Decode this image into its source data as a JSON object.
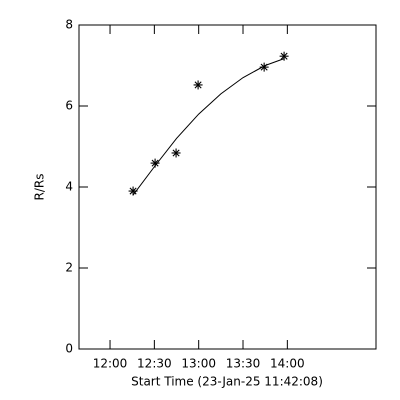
{
  "chart_data": {
    "type": "scatter",
    "xlabel": "Start Time (23-Jan-25 11:42:08)",
    "ylabel": "R/Rs",
    "xlim": [
      699,
      900
    ],
    "xticks": [
      {
        "value": 720,
        "label": "12:00"
      },
      {
        "value": 750,
        "label": "12:30"
      },
      {
        "value": 780,
        "label": "13:00"
      },
      {
        "value": 810,
        "label": "13:30"
      },
      {
        "value": 840,
        "label": "14:00"
      }
    ],
    "ylim": [
      0,
      8
    ],
    "yticks": [
      0,
      2,
      4,
      6,
      8
    ],
    "color": "#000000",
    "series": [
      {
        "type": "scatter",
        "x": [
          735.6,
          750.5,
          764.7,
          779.6,
          824.3,
          837.8
        ],
        "values": [
          3.9,
          4.59,
          4.84,
          6.52,
          6.96,
          7.23
        ]
      },
      {
        "type": "line",
        "x": [
          735.6,
          750,
          765,
          780,
          795,
          810,
          825,
          837.8
        ],
        "values": [
          3.8,
          4.5,
          5.2,
          5.8,
          6.3,
          6.7,
          7.0,
          7.17
        ]
      }
    ]
  }
}
